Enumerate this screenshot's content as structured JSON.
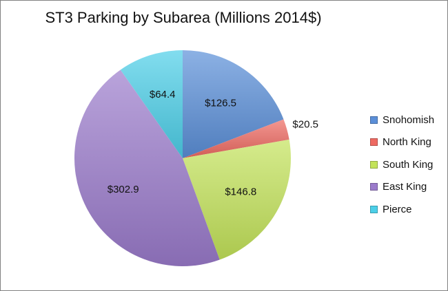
{
  "chart_data": {
    "type": "pie",
    "title": "ST3 Parking by Subarea (Millions 2014$)",
    "categories": [
      "Snohomish",
      "North King",
      "South King",
      "East King",
      "Pierce"
    ],
    "values": [
      126.5,
      20.5,
      146.8,
      302.9,
      64.4
    ],
    "data_labels": [
      "$126.5",
      "$20.5",
      "$146.8",
      "$302.9",
      "$64.4"
    ],
    "colors": [
      "#5b8fd8",
      "#ee6a62",
      "#c3e35a",
      "#9b7bcb",
      "#4ccfe8"
    ],
    "start_angle_deg": 0,
    "direction": "clockwise",
    "legend_position": "right"
  }
}
